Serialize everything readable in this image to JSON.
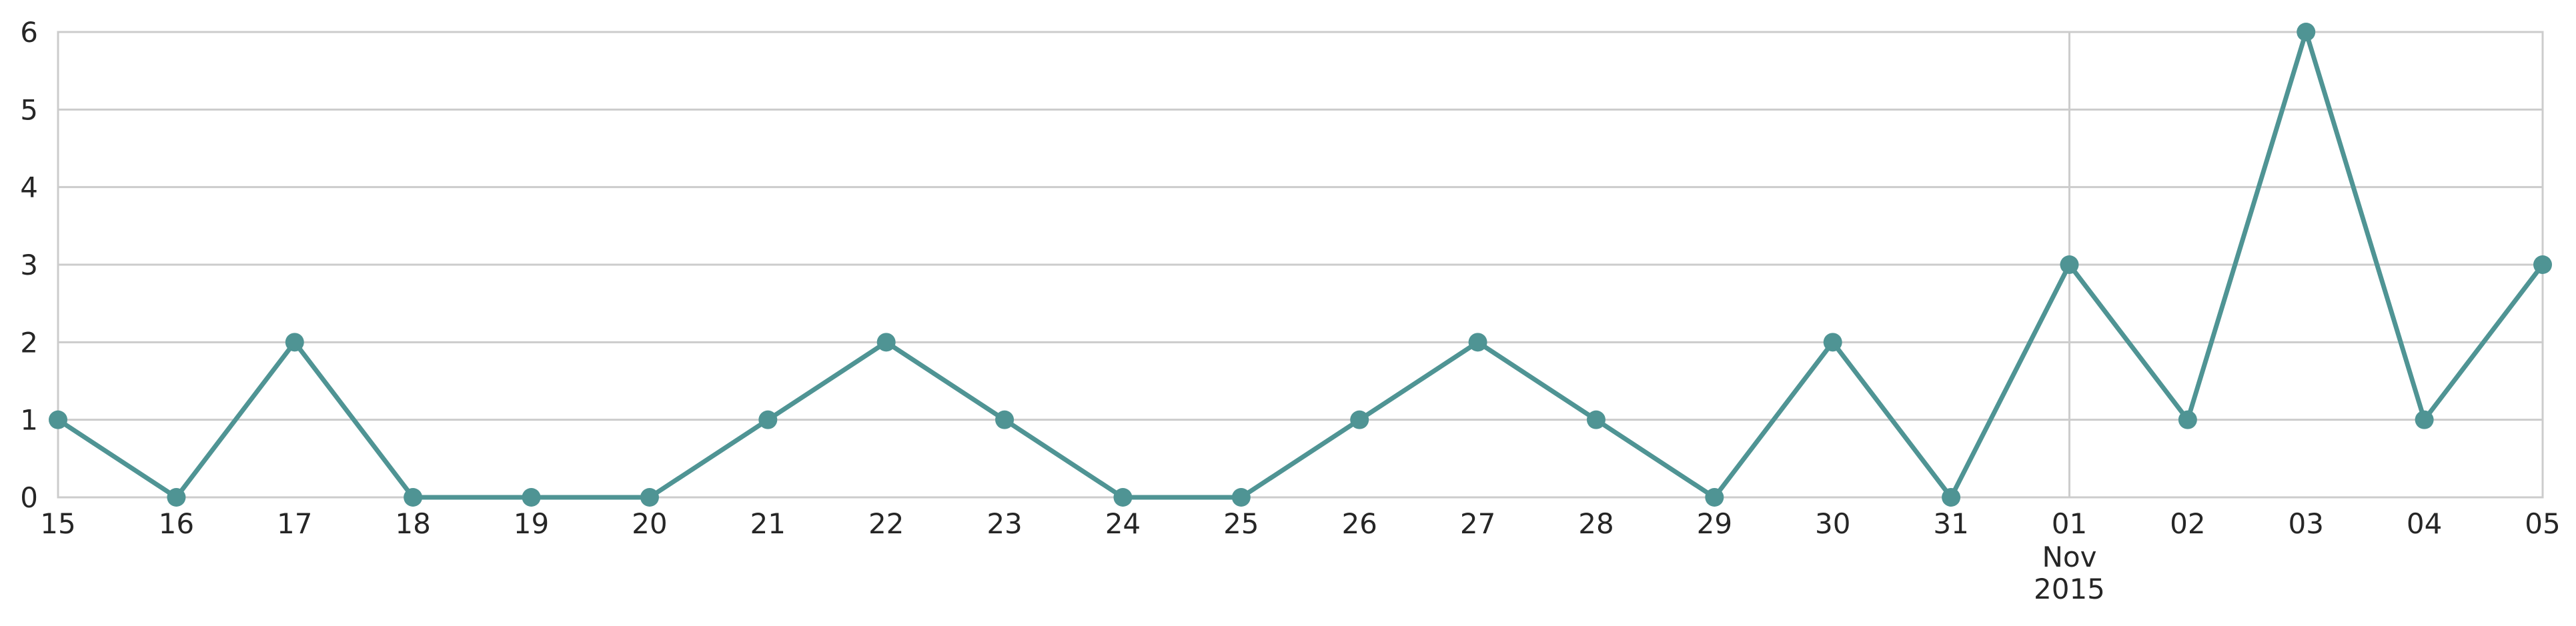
{
  "chart_data": {
    "type": "line",
    "title": "",
    "xlabel": "",
    "ylabel": "",
    "x": [
      "2015-10-15",
      "2015-10-16",
      "2015-10-17",
      "2015-10-18",
      "2015-10-19",
      "2015-10-20",
      "2015-10-21",
      "2015-10-22",
      "2015-10-23",
      "2015-10-24",
      "2015-10-25",
      "2015-10-26",
      "2015-10-27",
      "2015-10-28",
      "2015-10-29",
      "2015-10-30",
      "2015-10-31",
      "2015-11-01",
      "2015-11-02",
      "2015-11-03",
      "2015-11-04",
      "2015-11-05"
    ],
    "series": [
      {
        "values": [
          1,
          0,
          2,
          0,
          0,
          0,
          1,
          2,
          1,
          0,
          0,
          1,
          2,
          1,
          0,
          2,
          0,
          3,
          1,
          6,
          1,
          3
        ],
        "color": "#4f9494",
        "marker": "circle"
      }
    ],
    "x_tick_labels": [
      "15",
      "16",
      "17",
      "18",
      "19",
      "20",
      "21",
      "22",
      "23",
      "24",
      "25",
      "26",
      "27",
      "28",
      "29",
      "30",
      "31",
      "01",
      "02",
      "03",
      "04",
      "05"
    ],
    "x_secondary_label": {
      "index": 17,
      "lines": [
        "Nov",
        "2015"
      ]
    },
    "y_ticks": [
      0,
      1,
      2,
      3,
      4,
      5,
      6
    ],
    "ylim": [
      0,
      6
    ],
    "grid": "horizontal lines at every y tick, one vertical line at 01 Nov 2015",
    "legend": "none"
  }
}
